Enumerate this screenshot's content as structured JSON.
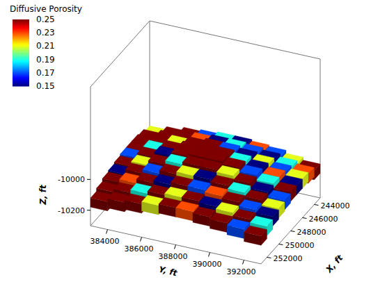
{
  "chart_data": {
    "type": "surface3d",
    "colorbar": {
      "title": "Diffusive Porosity",
      "range": [
        0.15,
        0.25
      ],
      "ticks": [
        0.15,
        0.17,
        0.19,
        0.21,
        0.23,
        0.25
      ]
    },
    "xlabel": "X, ft",
    "ylabel": "Y, ft",
    "zlabel": "Z, ft",
    "xlim": [
      243000,
      253000
    ],
    "ylim": [
      383000,
      393000
    ],
    "zlim": [
      -10300,
      -9400
    ],
    "xticks": [
      244000,
      246000,
      248000,
      250000,
      252000
    ],
    "yticks": [
      384000,
      386000,
      388000,
      390000,
      392000
    ],
    "zticks": [
      -10200,
      -10000
    ],
    "x_edges": [
      243000,
      244000,
      245000,
      246000,
      247000,
      248000,
      249000,
      250000,
      251000,
      252000,
      253000
    ],
    "y_edges": [
      383000,
      384000,
      385000,
      386000,
      387000,
      388000,
      389000,
      390000,
      391000,
      392000,
      393000
    ],
    "thickness": 60,
    "porosity": [
      [
        0.21,
        0.25,
        0.25,
        0.17,
        0.19,
        0.15,
        0.23,
        0.17,
        0.21,
        0.25
      ],
      [
        0.25,
        0.25,
        0.25,
        0.23,
        0.15,
        0.19,
        0.17,
        0.15,
        0.19,
        0.23
      ],
      [
        0.25,
        0.25,
        0.21,
        0.25,
        0.25,
        0.17,
        0.15,
        0.21,
        0.17,
        0.21
      ],
      [
        0.25,
        0.19,
        0.25,
        0.25,
        0.25,
        0.25,
        0.19,
        0.15,
        0.23,
        0.15
      ],
      [
        0.17,
        0.25,
        0.15,
        0.25,
        0.25,
        0.25,
        0.25,
        0.17,
        0.19,
        0.25
      ],
      [
        0.25,
        0.21,
        0.25,
        0.19,
        0.25,
        0.25,
        0.21,
        0.25,
        0.15,
        0.17
      ],
      [
        0.15,
        0.25,
        0.17,
        0.25,
        0.21,
        0.15,
        0.25,
        0.19,
        0.25,
        0.21
      ],
      [
        0.25,
        0.23,
        0.25,
        0.15,
        0.25,
        0.17,
        0.23,
        0.25,
        0.17,
        0.15
      ],
      [
        0.25,
        0.25,
        0.19,
        0.25,
        0.21,
        0.25,
        0.15,
        0.21,
        0.25,
        0.19
      ],
      [
        0.25,
        0.25,
        0.25,
        0.21,
        0.25,
        0.23,
        0.25,
        0.25,
        0.17,
        0.25
      ]
    ],
    "z": [
      [
        -10080,
        -10060,
        -10040,
        -10030,
        -10020,
        -10020,
        -10030,
        -10040,
        -10060,
        -10080
      ],
      [
        -10060,
        -10040,
        -10020,
        -10005,
        -9995,
        -9995,
        -10005,
        -10020,
        -10040,
        -10060
      ],
      [
        -10050,
        -10030,
        -10005,
        -9990,
        -9975,
        -9975,
        -9990,
        -10005,
        -10030,
        -10050
      ],
      [
        -10050,
        -10020,
        -9995,
        -9975,
        -9960,
        -9960,
        -9975,
        -9995,
        -10020,
        -10050
      ],
      [
        -10050,
        -10020,
        -9990,
        -9965,
        -9950,
        -9950,
        -9965,
        -9990,
        -10020,
        -10050
      ],
      [
        -10060,
        -10030,
        -10000,
        -9975,
        -9960,
        -9960,
        -9975,
        -10000,
        -10030,
        -10060
      ],
      [
        -10070,
        -10040,
        -10015,
        -9995,
        -9980,
        -9980,
        -9995,
        -10015,
        -10040,
        -10070
      ],
      [
        -10080,
        -10060,
        -10035,
        -10020,
        -10005,
        -10005,
        -10020,
        -10035,
        -10060,
        -10080
      ],
      [
        -10100,
        -10080,
        -10060,
        -10045,
        -10035,
        -10035,
        -10045,
        -10060,
        -10080,
        -10100
      ],
      [
        -10120,
        -10100,
        -10085,
        -10070,
        -10060,
        -10060,
        -10070,
        -10085,
        -10100,
        -10120
      ]
    ]
  }
}
